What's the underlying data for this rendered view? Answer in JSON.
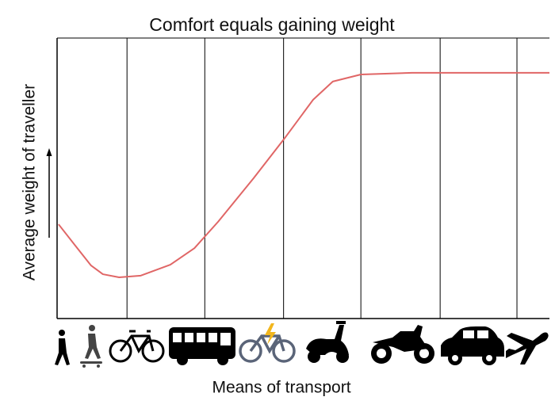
{
  "chart_data": {
    "type": "line",
    "title": "Comfort equals gaining weight",
    "x_label": "Means of transport",
    "y_label": "Average weight of traveller",
    "x": [
      0.3,
      3.7,
      6.9,
      9.3,
      12.6,
      17,
      23,
      27.9,
      32.7,
      39.9,
      46.4,
      52,
      56,
      61.7,
      72.1,
      85,
      100
    ],
    "series": [
      {
        "color": "#e06666",
        "values": [
          33.6,
          26,
          18.9,
          15.8,
          14.7,
          15.3,
          19.2,
          25.1,
          34.5,
          50,
          64.7,
          78,
          84.5,
          87,
          87.6,
          87.6,
          87.6
        ]
      }
    ],
    "xlim": [
      0,
      100
    ],
    "ylim": [
      0,
      100
    ],
    "xticks": [
      14.2,
      30,
      46,
      61.7,
      77.8,
      93.4
    ],
    "grid": true
  }
}
